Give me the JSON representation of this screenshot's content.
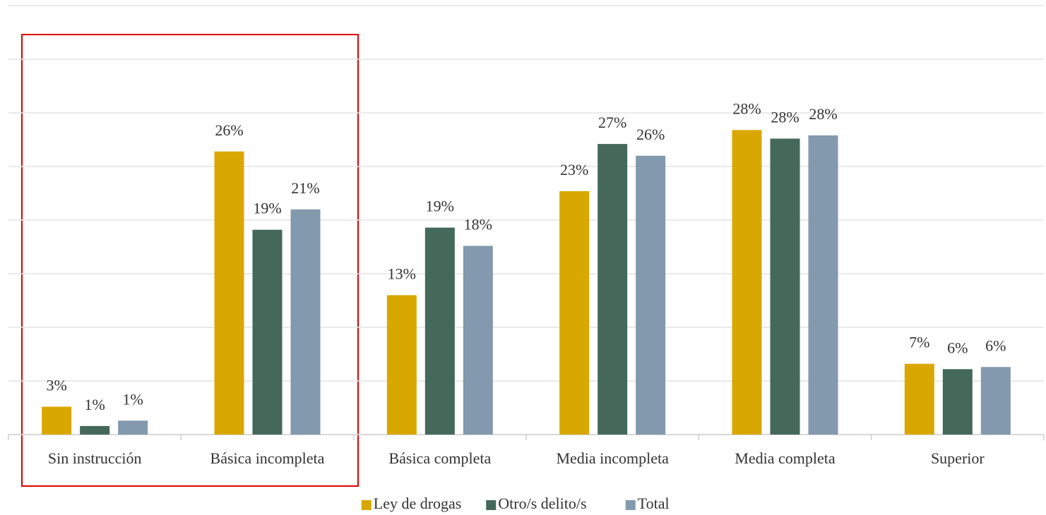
{
  "chart_data": {
    "type": "bar",
    "categories": [
      "Sin instrucción",
      "Básica incompleta",
      "Básica completa",
      "Media incompleta",
      "Media completa",
      "Superior"
    ],
    "series": [
      {
        "name": "Ley de drogas",
        "color": "#d9a800",
        "values": [
          2.6,
          26.4,
          13.0,
          22.7,
          28.4,
          6.6
        ],
        "value_labels": [
          "3%",
          "26%",
          "13%",
          "23%",
          "28%",
          "7%"
        ]
      },
      {
        "name": "Otro/s delito/s",
        "color": "#44695a",
        "values": [
          0.8,
          19.1,
          19.3,
          27.1,
          27.6,
          6.1
        ],
        "value_labels": [
          "1%",
          "19%",
          "19%",
          "27%",
          "28%",
          "6%"
        ]
      },
      {
        "name": "Total",
        "color": "#8399ad",
        "values": [
          1.3,
          21.0,
          17.6,
          26.0,
          27.9,
          6.3
        ],
        "value_labels": [
          "1%",
          "21%",
          "18%",
          "26%",
          "28%",
          "6%"
        ]
      }
    ],
    "ylim": [
      0,
      40
    ],
    "yticks": [
      0,
      5,
      10,
      15,
      20,
      25,
      30,
      35,
      40
    ],
    "grid": true,
    "legend": "bottom"
  }
}
